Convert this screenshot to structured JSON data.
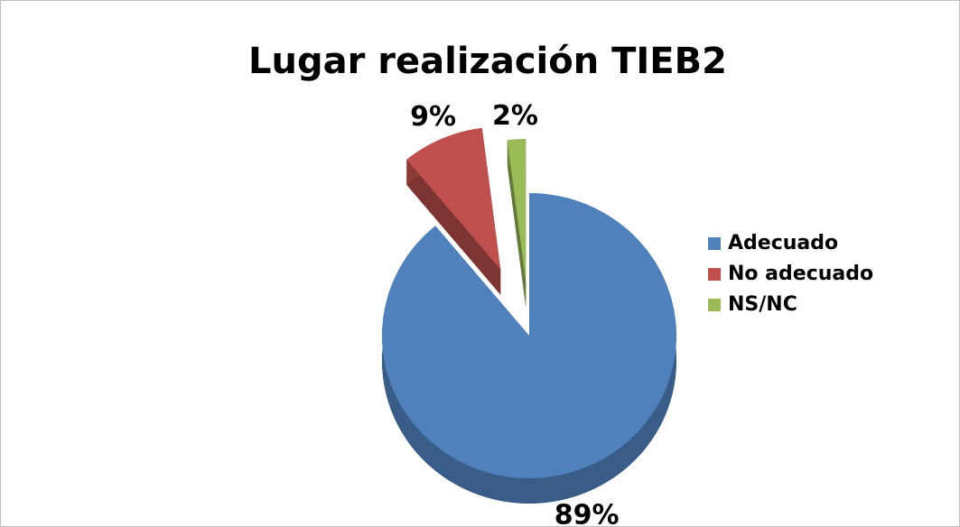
{
  "chart_data": {
    "type": "pie",
    "title": "Lugar realización TIEB2",
    "categories": [
      "Adecuado",
      "No adecuado",
      "NS/NC"
    ],
    "values": [
      89,
      9,
      2
    ],
    "value_labels": [
      "89%",
      "9%",
      "2%"
    ],
    "colors": [
      "#4f81bd",
      "#c0504d",
      "#9bbb59"
    ],
    "legend": "right"
  }
}
